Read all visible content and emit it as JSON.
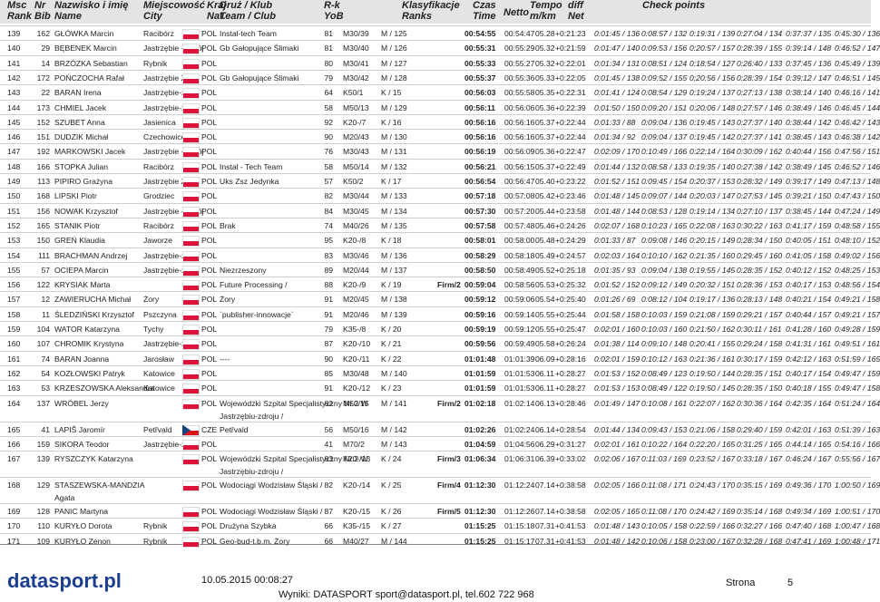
{
  "header": {
    "columns": [
      {
        "line1": "Msc",
        "line2": "Rank"
      },
      {
        "line1": "Nr",
        "line2": "Bib"
      },
      {
        "line1": "Nazwisko i imię",
        "line2": "Name"
      },
      {
        "line1": "Miejscowość",
        "line2": "City"
      },
      {
        "line1": "Kraj",
        "line2": "Nat."
      },
      {
        "line1": "Druż / Klub",
        "line2": "Team / Club"
      },
      {
        "line1": "R-k",
        "line2": "YoB"
      },
      {
        "line1": "Klasyfikacje",
        "line2": "Ranks"
      },
      {
        "line1": "Czas",
        "line2": "Time"
      },
      {
        "line1": "Netto"
      },
      {
        "line1": "Tempo",
        "line2": "m/km"
      },
      {
        "line1": "diff",
        "line2": "Net"
      },
      {
        "line1": "Check points"
      }
    ]
  },
  "table": {
    "rows": [
      {
        "rank": "139",
        "bib": "162",
        "name": "GŁÓWKA Marcin",
        "city": "Racibórz",
        "nat": "POL",
        "team": "Instal-tech Team",
        "yob": "81",
        "cat": "M30/39",
        "ranks": "M / 125",
        "time": "00:54:55",
        "netto": "00:54:47",
        "tempo": "05.28",
        "diff": "+0:21:23",
        "checkpoints": [
          "0:01:45 / 136",
          "0:08:57 / 132",
          "0:19:31 / 139",
          "0:27:04 / 134",
          "0:37:37 / 135",
          "0:45:30 / 136"
        ]
      },
      {
        "rank": "140",
        "bib": "29",
        "name": "BĘBENEK Marcin",
        "city": "Jastrzębie - Zdrój",
        "nat": "POL",
        "team": "Gb Gałopujące Ślimaki",
        "yob": "81",
        "cat": "M30/40",
        "ranks": "M / 126",
        "time": "00:55:31",
        "netto": "00:55:29",
        "tempo": "05.32",
        "diff": "+0:21:59",
        "checkpoints": [
          "0:01:47 / 140",
          "0:09:53 / 156",
          "0:20:57 / 157",
          "0:28:39 / 155",
          "0:39:14 / 148",
          "0:46:52 / 147"
        ]
      },
      {
        "rank": "141",
        "bib": "14",
        "name": "BRZÓZKA Sebastian",
        "city": "Rybnik",
        "nat": "POL",
        "yob": "80",
        "cat": "M30/41",
        "ranks": "M / 127",
        "time": "00:55:33",
        "netto": "00:55:27",
        "tempo": "05.32",
        "diff": "+0:22:01",
        "checkpoints": [
          "0:01:34 / 131",
          "0:08:51 / 124",
          "0:18:54 / 127",
          "0:26:40 / 133",
          "0:37:45 / 136",
          "0:45:49 / 139"
        ]
      },
      {
        "rank": "142",
        "bib": "172",
        "name": "POŃCZOCHA Rafał",
        "city": "Jastrzębie Zdrój",
        "nat": "POL",
        "team": "Gb Gałopujące Ślimaki",
        "yob": "79",
        "cat": "M30/42",
        "ranks": "M / 128",
        "time": "00:55:37",
        "netto": "00:55:36",
        "tempo": "05.33",
        "diff": "+0:22:05",
        "checkpoints": [
          "0:01:45 / 138",
          "0:09:52 / 155",
          "0:20:56 / 156",
          "0:28:39 / 154",
          "0:39:12 / 147",
          "0:46:51 / 145"
        ]
      },
      {
        "rank": "143",
        "bib": "22",
        "name": "BARAN Irena",
        "city": "Jastrzębie-zdrój",
        "nat": "POL",
        "yob": "64",
        "cat": "K50/1",
        "ranks": "K / 15",
        "time": "00:56:03",
        "netto": "00:55:58",
        "tempo": "05.35",
        "diff": "+0:22:31",
        "checkpoints": [
          "0:01:41 / 124",
          "0:08:54 / 129",
          "0:19:24 / 137",
          "0:27:13 / 138",
          "0:38:14 / 140",
          "0:46:16 / 141"
        ]
      },
      {
        "rank": "144",
        "bib": "173",
        "name": "CHMIEL Jacek",
        "city": "Jastrzębie-zdrój",
        "nat": "POL",
        "yob": "58",
        "cat": "M50/13",
        "ranks": "M / 129",
        "time": "00:56:11",
        "netto": "00:56:06",
        "tempo": "05.36",
        "diff": "+0:22:39",
        "checkpoints": [
          "0:01:50 / 150",
          "0:09:20 / 151",
          "0:20:06 / 148",
          "0:27:57 / 146",
          "0:38:49 / 146",
          "0:46:45 / 144"
        ]
      },
      {
        "rank": "145",
        "bib": "152",
        "name": "SZUBET Anna",
        "city": "Jasienica",
        "nat": "POL",
        "yob": "92",
        "cat": "K20-/7",
        "ranks": "K / 16",
        "time": "00:56:16",
        "netto": "00:56:16",
        "tempo": "05.37",
        "diff": "+0:22:44",
        "checkpoints": [
          "0:01:33 / 88",
          "0:09:04 / 136",
          "0:19:45 / 143",
          "0:27:37 / 140",
          "0:38:44 / 142",
          "0:46:42 / 143"
        ]
      },
      {
        "rank": "146",
        "bib": "151",
        "name": "DUDZIK Michał",
        "city": "Czechowice-",
        "nat": "POL",
        "yob": "90",
        "cat": "M20/43",
        "ranks": "M / 130",
        "time": "00:56:16",
        "netto": "00:56:16",
        "tempo": "05.37",
        "diff": "+0:22:44",
        "checkpoints": [
          "0:01:34 / 92",
          "0:09:04 / 137",
          "0:19:45 / 142",
          "0:27:37 / 141",
          "0:38:45 / 143",
          "0:46:38 / 142"
        ]
      },
      {
        "rank": "147",
        "bib": "192",
        "name": "MARKOWSKI Jacek",
        "city": "Jastrzębie - Zdrój",
        "nat": "POL",
        "yob": "76",
        "cat": "M30/43",
        "ranks": "M / 131",
        "time": "00:56:19",
        "netto": "00:56:09",
        "tempo": "05.36",
        "diff": "+0:22:47",
        "checkpoints": [
          "0:02:09 / 170",
          "0:10:49 / 166",
          "0:22:14 / 164",
          "0:30:09 / 162",
          "0:40:44 / 156",
          "0:47:56 / 151"
        ]
      },
      {
        "rank": "148",
        "bib": "166",
        "name": "STOPKA Julian",
        "city": "Racibórz",
        "nat": "POL",
        "team": "Instal - Tech Team",
        "yob": "58",
        "cat": "M50/14",
        "ranks": "M / 132",
        "time": "00:56:21",
        "netto": "00:56:15",
        "tempo": "05.37",
        "diff": "+0:22:49",
        "checkpoints": [
          "0:01:44 / 132",
          "0:08:58 / 133",
          "0:19:35 / 140",
          "0:27:38 / 142",
          "0:38:49 / 145",
          "0:46:52 / 146"
        ]
      },
      {
        "rank": "149",
        "bib": "113",
        "name": "PIPIRO Grażyna",
        "city": "Jastrzębie Zdr",
        "nat": "POL",
        "team": "Uks Zsz Jedynka",
        "yob": "57",
        "cat": "K50/2",
        "ranks": "K / 17",
        "time": "00:56:54",
        "netto": "00:56:47",
        "tempo": "05.40",
        "diff": "+0:23:22",
        "checkpoints": [
          "0:01:52 / 151",
          "0:09:45 / 154",
          "0:20:37 / 153",
          "0:28:32 / 149",
          "0:39:17 / 149",
          "0:47:13 / 148"
        ]
      },
      {
        "rank": "150",
        "bib": "168",
        "name": "LIPSKI Piotr",
        "city": "Grodziec",
        "nat": "POL",
        "yob": "82",
        "cat": "M30/44",
        "ranks": "M / 133",
        "time": "00:57:18",
        "netto": "00:57:08",
        "tempo": "05.42",
        "diff": "+0:23:46",
        "checkpoints": [
          "0:01:48 / 145",
          "0:09:07 / 144",
          "0:20:03 / 147",
          "0:27:53 / 145",
          "0:39:21 / 150",
          "0:47:43 / 150"
        ]
      },
      {
        "rank": "151",
        "bib": "156",
        "name": "NOWAK Krzysztof",
        "city": "Jastrzębie - Zdrój",
        "nat": "POL",
        "yob": "84",
        "cat": "M30/45",
        "ranks": "M / 134",
        "time": "00:57:30",
        "netto": "00:57:20",
        "tempo": "05.44",
        "diff": "+0:23:58",
        "checkpoints": [
          "0:01:48 / 144",
          "0:08:53 / 128",
          "0:19:14 / 134",
          "0:27:10 / 137",
          "0:38:45 / 144",
          "0:47:24 / 149"
        ]
      },
      {
        "rank": "152",
        "bib": "165",
        "name": "STANIK Piotr",
        "city": "Racibórz",
        "nat": "POL",
        "team": "Brak",
        "yob": "74",
        "cat": "M40/26",
        "ranks": "M / 135",
        "time": "00:57:58",
        "netto": "00:57:48",
        "tempo": "05.46",
        "diff": "+0:24:26",
        "checkpoints": [
          "0:02:07 / 168",
          "0:10:23 / 165",
          "0:22:08 / 163",
          "0:30:22 / 163",
          "0:41:17 / 159",
          "0:48:58 / 155"
        ]
      },
      {
        "rank": "153",
        "bib": "150",
        "name": "GREŃ Klaudia",
        "city": "Jaworze",
        "nat": "POL",
        "yob": "95",
        "cat": "K20-/8",
        "ranks": "K / 18",
        "time": "00:58:01",
        "netto": "00:58:00",
        "tempo": "05.48",
        "diff": "+0:24:29",
        "checkpoints": [
          "0:01:33 / 87",
          "0:09:08 / 146",
          "0:20:15 / 149",
          "0:28:34 / 150",
          "0:40:05 / 151",
          "0:48:10 / 152"
        ]
      },
      {
        "rank": "154",
        "bib": "111",
        "name": "BRACHMAN Andrzej",
        "city": "Jastrzębie-zdrój",
        "nat": "POL",
        "yob": "83",
        "cat": "M30/46",
        "ranks": "M / 136",
        "time": "00:58:29",
        "netto": "00:58:18",
        "tempo": "05.49",
        "diff": "+0:24:57",
        "checkpoints": [
          "0:02:03 / 164",
          "0:10:10 / 162",
          "0:21:35 / 160",
          "0:29:45 / 160",
          "0:41:05 / 158",
          "0:49:02 / 156"
        ]
      },
      {
        "rank": "155",
        "bib": "57",
        "name": "OCIEPA Marcin",
        "city": "Jastrzębie-zdrój",
        "nat": "POL",
        "team": "Niezrzeszony",
        "yob": "89",
        "cat": "M20/44",
        "ranks": "M / 137",
        "time": "00:58:50",
        "netto": "00:58:49",
        "tempo": "05.52",
        "diff": "+0:25:18",
        "checkpoints": [
          "0:01:35 / 93",
          "0:09:04 / 138",
          "0:19:55 / 145",
          "0:28:35 / 152",
          "0:40:12 / 152",
          "0:48:25 / 153"
        ]
      },
      {
        "rank": "156",
        "bib": "122",
        "name": "KRYSIAK Marta",
        "nat": "POL",
        "team": "Future Processing /",
        "yob": "88",
        "cat": "K20-/9",
        "ranks": "K / 19",
        "firm": "Firm/2",
        "time": "00:59:04",
        "netto": "00:58:56",
        "tempo": "05.53",
        "diff": "+0:25:32",
        "checkpoints": [
          "0:01:52 / 152",
          "0:09:12 / 149",
          "0:20:32 / 151",
          "0:28:36 / 153",
          "0:40:17 / 153",
          "0:48:56 / 154"
        ]
      },
      {
        "rank": "157",
        "bib": "12",
        "name": "ZAWIERUCHA Michał",
        "city": "Żory",
        "nat": "POL",
        "team": "Żory",
        "yob": "91",
        "cat": "M20/45",
        "ranks": "M / 138",
        "time": "00:59:12",
        "netto": "00:59:06",
        "tempo": "05.54",
        "diff": "+0:25:40",
        "checkpoints": [
          "0:01:26 / 69",
          "0:08:12 / 104",
          "0:19:17 / 136",
          "0:28:13 / 148",
          "0:40:21 / 154",
          "0:49:21 / 158"
        ]
      },
      {
        "rank": "158",
        "bib": "11",
        "name": "ŚLEDZIŃSKI Krzysztof",
        "city": "Pszczyna",
        "nat": "POL",
        "team": "`publisher-innowacje`",
        "yob": "91",
        "cat": "M20/46",
        "ranks": "M / 139",
        "time": "00:59:16",
        "netto": "00:59:14",
        "tempo": "05.55",
        "diff": "+0:25:44",
        "checkpoints": [
          "0:01:58 / 158",
          "0:10:03 / 159",
          "0:21:08 / 159",
          "0:29:21 / 157",
          "0:40:44 / 157",
          "0:49:21 / 157"
        ]
      },
      {
        "rank": "159",
        "bib": "104",
        "name": "WATOR Katarzyna",
        "city": "Tychy",
        "nat": "POL",
        "yob": "79",
        "cat": "K35-/8",
        "ranks": "K / 20",
        "time": "00:59:19",
        "netto": "00:59:12",
        "tempo": "05.55",
        "diff": "+0:25:47",
        "checkpoints": [
          "0:02:01 / 160",
          "0:10:03 / 160",
          "0:21:50 / 162",
          "0:30:11 / 161",
          "0:41:28 / 160",
          "0:49:28 / 159"
        ]
      },
      {
        "rank": "160",
        "bib": "107",
        "name": "CHROMIK Krystyna",
        "city": "Jastrzębie-zdrój",
        "nat": "POL",
        "yob": "87",
        "cat": "K20-/10",
        "ranks": "K / 21",
        "time": "00:59:56",
        "netto": "00:59:49",
        "tempo": "05.58",
        "diff": "+0:26:24",
        "checkpoints": [
          "0:01:38 / 114",
          "0:09:10 / 148",
          "0:20:41 / 155",
          "0:29:24 / 158",
          "0:41:31 / 161",
          "0:49:51 / 161"
        ]
      },
      {
        "rank": "161",
        "bib": "74",
        "name": "BARAN Joanna",
        "city": "Jarosław",
        "nat": "POL",
        "team": "----",
        "yob": "90",
        "cat": "K20-/11",
        "ranks": "K / 22",
        "time": "01:01:48",
        "netto": "01:01:39",
        "tempo": "06.09",
        "diff": "+0:28:16",
        "checkpoints": [
          "0:02:01 / 159",
          "0:10:12 / 163",
          "0:21:36 / 161",
          "0:30:17 / 159",
          "0:42:12 / 163",
          "0:51:59 / 165"
        ]
      },
      {
        "rank": "162",
        "bib": "54",
        "name": "KOZŁOWSKI Patryk",
        "city": "Katowice",
        "nat": "POL",
        "yob": "85",
        "cat": "M30/48",
        "ranks": "M / 140",
        "time": "01:01:59",
        "netto": "01:01:53",
        "tempo": "06.11",
        "diff": "+0:28:27",
        "checkpoints": [
          "0:01:53 / 152",
          "0:08:49 / 123",
          "0:19:50 / 144",
          "0:28:35 / 151",
          "0:40:17 / 154",
          "0:49:47 / 159"
        ]
      },
      {
        "rank": "163",
        "bib": "53",
        "name": "KRZESZOWSKA Aleksandra",
        "city": "Katowice",
        "nat": "POL",
        "yob": "91",
        "cat": "K20-/12",
        "ranks": "K / 23",
        "time": "01:01:59",
        "netto": "01:01:53",
        "tempo": "06.11",
        "diff": "+0:28:27",
        "checkpoints": [
          "0:01:53 / 153",
          "0:08:49 / 122",
          "0:19:50 / 145",
          "0:28:35 / 150",
          "0:40:18 / 155",
          "0:49:47 / 158"
        ]
      },
      {
        "rank": "164",
        "bib": "137",
        "name": "WRÓBEL Jerzy",
        "nat": "POL",
        "team": "Wojewódzki Szpital Specjalistyczny Nr.2 W",
        "team_line2": "Jastrzębiu-zdroju /",
        "yob": "62",
        "cat": "M50/15",
        "ranks": "M / 141",
        "firm": "Firm/2",
        "time": "01:02:18",
        "netto": "01:02:14",
        "tempo": "06.13",
        "diff": "+0:28:46",
        "checkpoints": [
          "0:01:49 / 147",
          "0:10:08 / 161",
          "0:22:07 / 162",
          "0:30:36 / 164",
          "0:42:35 / 164",
          "0:51:24 / 164"
        ]
      },
      {
        "rank": "165",
        "bib": "41",
        "name": "LAPIŠ Jaromír",
        "city": "Petřvald",
        "nat": "CZE",
        "team": "Petřvald",
        "yob": "56",
        "cat": "M50/16",
        "ranks": "M / 142",
        "time": "01:02:26",
        "netto": "01:02:24",
        "tempo": "06.14",
        "diff": "+0:28:54",
        "checkpoints": [
          "0:01:44 / 134",
          "0:09:43 / 153",
          "0:21:06 / 158",
          "0:29:40 / 159",
          "0:42:01 / 163",
          "0:51:39 / 163"
        ]
      },
      {
        "rank": "166",
        "bib": "159",
        "name": "SIKORA Teodor",
        "city": "Jastrzębie-zdrój",
        "nat": "POL",
        "yob": "41",
        "cat": "M70/2",
        "ranks": "M / 143",
        "time": "01:04:59",
        "netto": "01:04:56",
        "tempo": "06.29",
        "diff": "+0:31:27",
        "checkpoints": [
          "0:02:01 / 161",
          "0:10:22 / 164",
          "0:22:20 / 165",
          "0:31:25 / 165",
          "0:44:14 / 165",
          "0:54:16 / 166"
        ]
      },
      {
        "rank": "167",
        "bib": "139",
        "name": "RYSZCZYK Katarzyna",
        "nat": "POL",
        "team": "Wojewódzki Szpital Specjalistyczny Nr.2 W",
        "team_line2": "Jastrzębiu-zdroju /",
        "yob": "83",
        "cat": "K20-/13",
        "ranks": "K / 24",
        "firm": "Firm/3",
        "time": "01:06:34",
        "netto": "01:06:31",
        "tempo": "06.39",
        "diff": "+0:33:02",
        "checkpoints": [
          "0:02:06 / 167",
          "0:11:03 / 169",
          "0:23:52 / 167",
          "0:33:18 / 167",
          "0:46:24 / 167",
          "0:55:56 / 167"
        ]
      },
      {
        "rank": "168",
        "bib": "129",
        "name": "STASZEWSKA-MANDZIA",
        "name_line2": "Agata",
        "nat": "POL",
        "team": "Wodociągi Wodzisław Śląski /",
        "yob": "82",
        "cat": "K20-/14",
        "ranks": "K / 25",
        "firm": "Firm/4",
        "time": "01:12:30",
        "netto": "01:12:24",
        "tempo": "07.14",
        "diff": "+0:38:58",
        "checkpoints": [
          "0:02:05 / 166",
          "0:11:08 / 171",
          "0:24:43 / 170",
          "0:35:15 / 169",
          "0:49:36 / 170",
          "1:00:50 / 169"
        ]
      },
      {
        "rank": "169",
        "bib": "128",
        "name": "PANIC Martyna",
        "nat": "POL",
        "team": "Wodociągi Wodzisław Śląski /",
        "yob": "87",
        "cat": "K20-/15",
        "ranks": "K / 26",
        "firm": "Firm/5",
        "time": "01:12:30",
        "netto": "01:12:26",
        "tempo": "07.14",
        "diff": "+0:38:58",
        "checkpoints": [
          "0:02:05 / 165",
          "0:11:08 / 170",
          "0:24:42 / 169",
          "0:35:14 / 168",
          "0:49:34 / 169",
          "1:00:51 / 170"
        ]
      },
      {
        "rank": "170",
        "bib": "110",
        "name": "KURYŁO Dorota",
        "city": "Rybnik",
        "nat": "POL",
        "team": "Drużyna Szybka",
        "yob": "66",
        "cat": "K35-/15",
        "ranks": "K / 27",
        "time": "01:15:25",
        "netto": "01:15:18",
        "tempo": "07.31",
        "diff": "+0:41:53",
        "checkpoints": [
          "0:01:48 / 143",
          "0:10:05 / 158",
          "0:22:59 / 166",
          "0:32:27 / 166",
          "0:47:40 / 168",
          "1:00:47 / 168"
        ]
      },
      {
        "rank": "171",
        "bib": "109",
        "name": "KURYŁO Zenon",
        "city": "Rybnik",
        "nat": "POL",
        "team": "Geo-bud-t.b.m. Żory",
        "yob": "66",
        "cat": "M40/27",
        "ranks": "M / 144",
        "time": "01:15:25",
        "netto": "01:15:17",
        "tempo": "07.31",
        "diff": "+0:41:53",
        "checkpoints": [
          "0:01:48 / 142",
          "0:10:06 / 158",
          "0:23:00 / 167",
          "0:32:28 / 168",
          "0:47:41 / 169",
          "1:00:48 / 171"
        ]
      }
    ]
  },
  "footer": {
    "logo": "datasport.pl",
    "date": "10.05.2015 00:08:27",
    "contact": "Wyniki: DATASPORT sport@datasport.pl, tel.602 722 968",
    "page_label": "Strona",
    "page_number": "5"
  }
}
